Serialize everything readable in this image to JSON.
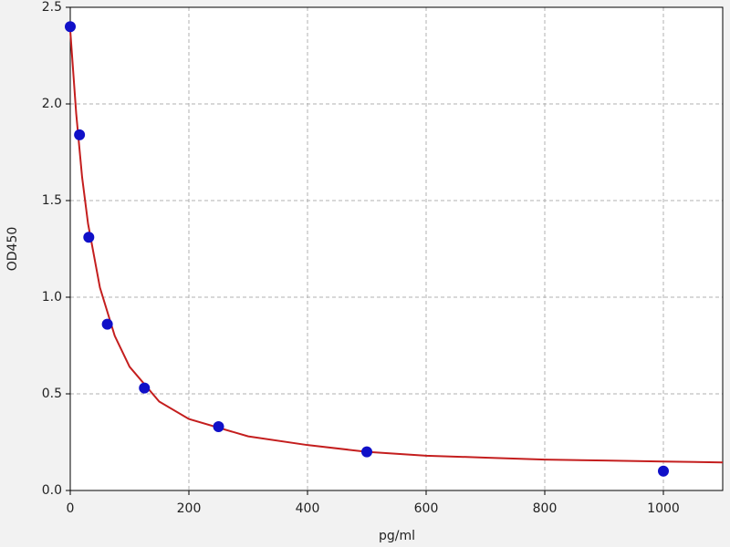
{
  "chart_data": {
    "type": "scatter",
    "xlabel": "pg/ml",
    "ylabel": "OD450",
    "xlim": [
      0,
      1100
    ],
    "xticks": [
      0,
      200,
      400,
      600,
      800,
      1000
    ],
    "ylim": [
      0,
      2.5
    ],
    "yticks": [
      {
        "value": 0,
        "label": "0.0"
      },
      0.5,
      {
        "value": 1,
        "label": "1.0"
      },
      1.5,
      {
        "value": 2,
        "label": "2.0"
      },
      2.5
    ],
    "grid": true,
    "series": [
      {
        "style": "line",
        "color": "#c41e1e",
        "x": [
          0,
          10,
          20,
          30,
          50,
          75,
          100,
          150,
          200,
          300,
          400,
          500,
          600,
          700,
          800,
          900,
          1000,
          1100
        ],
        "values": [
          2.38,
          1.95,
          1.62,
          1.38,
          1.05,
          0.8,
          0.64,
          0.46,
          0.37,
          0.28,
          0.235,
          0.2,
          0.18,
          0.17,
          0.16,
          0.155,
          0.15,
          0.145
        ]
      },
      {
        "style": "points",
        "color": "#1010c8",
        "x": [
          0,
          15.6,
          31.25,
          62.5,
          125,
          250,
          500,
          1000
        ],
        "values": [
          2.4,
          1.84,
          1.31,
          0.86,
          0.53,
          0.33,
          0.2,
          0.1
        ]
      }
    ]
  }
}
